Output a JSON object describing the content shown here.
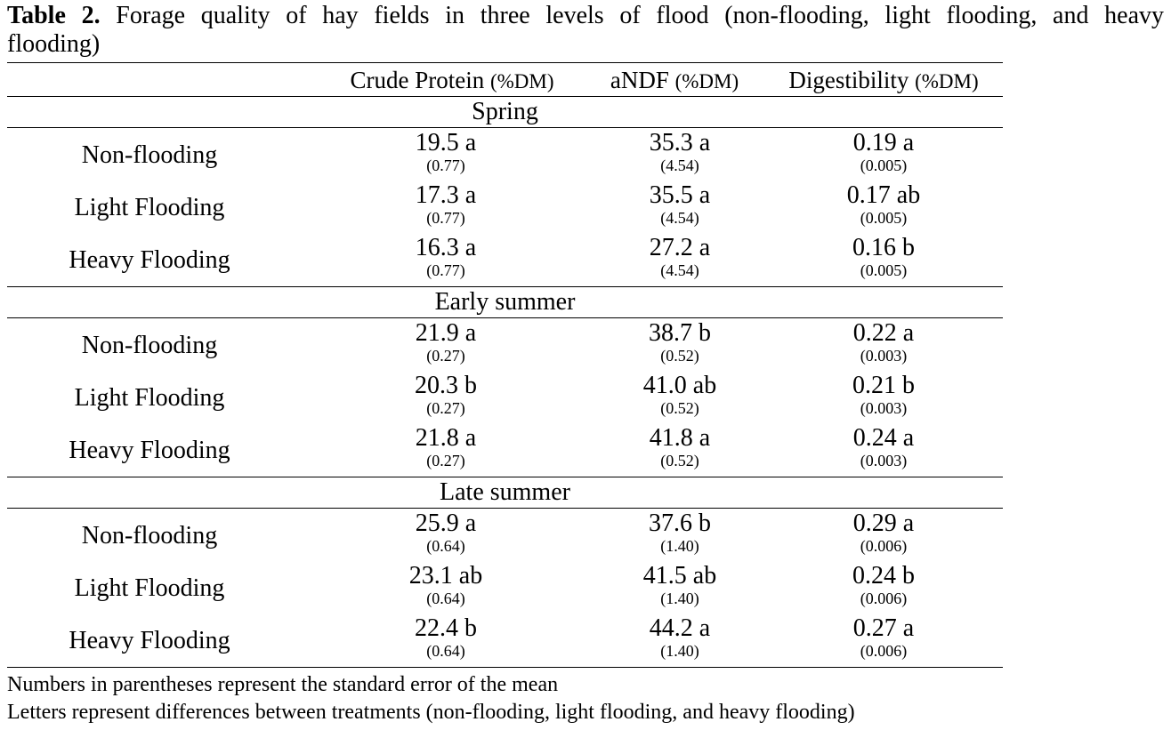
{
  "caption": {
    "label": "Table 2.",
    "text_line1": "Forage quality of hay fields in three levels of flood (non-flooding, light flooding, and heavy",
    "text_line2": "flooding)"
  },
  "columns": [
    {
      "name": "Crude Protein",
      "unit": "(%DM)"
    },
    {
      "name": "aNDF",
      "unit": "(%DM)"
    },
    {
      "name": "Digestibility",
      "unit": "(%DM)"
    }
  ],
  "sections": [
    {
      "title": "Spring",
      "rows": [
        {
          "label": "Non-flooding",
          "cells": [
            {
              "mean": "19.5 a",
              "se": "(0.77)"
            },
            {
              "mean": "35.3 a",
              "se": "(4.54)"
            },
            {
              "mean": "0.19 a",
              "se": "(0.005)"
            }
          ]
        },
        {
          "label": "Light Flooding",
          "cells": [
            {
              "mean": "17.3 a",
              "se": "(0.77)"
            },
            {
              "mean": "35.5 a",
              "se": "(4.54)"
            },
            {
              "mean": "0.17 ab",
              "se": "(0.005)"
            }
          ]
        },
        {
          "label": "Heavy Flooding",
          "cells": [
            {
              "mean": "16.3 a",
              "se": "(0.77)"
            },
            {
              "mean": "27.2 a",
              "se": "(4.54)"
            },
            {
              "mean": "0.16 b",
              "se": "(0.005)"
            }
          ]
        }
      ]
    },
    {
      "title": "Early summer",
      "rows": [
        {
          "label": "Non-flooding",
          "cells": [
            {
              "mean": "21.9 a",
              "se": "(0.27)"
            },
            {
              "mean": "38.7 b",
              "se": "(0.52)"
            },
            {
              "mean": "0.22 a",
              "se": "(0.003)"
            }
          ]
        },
        {
          "label": "Light Flooding",
          "cells": [
            {
              "mean": "20.3 b",
              "se": "(0.27)"
            },
            {
              "mean": "41.0 ab",
              "se": "(0.52)"
            },
            {
              "mean": "0.21 b",
              "se": "(0.003)"
            }
          ]
        },
        {
          "label": "Heavy Flooding",
          "cells": [
            {
              "mean": "21.8 a",
              "se": "(0.27)"
            },
            {
              "mean": "41.8 a",
              "se": "(0.52)"
            },
            {
              "mean": "0.24 a",
              "se": "(0.003)"
            }
          ]
        }
      ]
    },
    {
      "title": "Late summer",
      "rows": [
        {
          "label": "Non-flooding",
          "cells": [
            {
              "mean": "25.9 a",
              "se": "(0.64)"
            },
            {
              "mean": "37.6 b",
              "se": "(1.40)"
            },
            {
              "mean": "0.29 a",
              "se": "(0.006)"
            }
          ]
        },
        {
          "label": "Light Flooding",
          "cells": [
            {
              "mean": "23.1 ab",
              "se": "(0.64)"
            },
            {
              "mean": "41.5 ab",
              "se": "(1.40)"
            },
            {
              "mean": "0.24 b",
              "se": "(0.006)"
            }
          ]
        },
        {
          "label": "Heavy Flooding",
          "cells": [
            {
              "mean": "22.4 b",
              "se": "(0.64)"
            },
            {
              "mean": "44.2 a",
              "se": "(1.40)"
            },
            {
              "mean": "0.27 a",
              "se": "(0.006)"
            }
          ]
        }
      ]
    }
  ],
  "notes": [
    "Numbers in parentheses represent the standard error of the mean",
    "Letters represent differences between treatments (non-flooding, light flooding, and heavy flooding)"
  ]
}
